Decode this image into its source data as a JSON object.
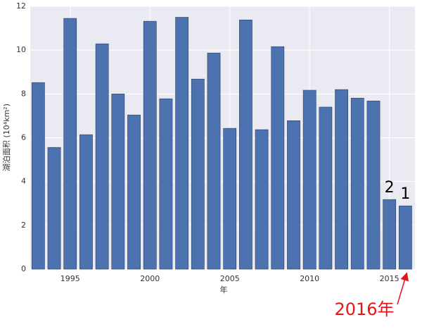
{
  "chart_data": {
    "type": "bar",
    "x": [
      1993,
      1994,
      1995,
      1996,
      1997,
      1998,
      1999,
      2000,
      2001,
      2002,
      2003,
      2004,
      2005,
      2006,
      2007,
      2008,
      2009,
      2010,
      2011,
      2012,
      2013,
      2014,
      2015,
      2016
    ],
    "values": [
      8.52,
      5.56,
      11.45,
      6.14,
      10.29,
      8.0,
      7.04,
      11.32,
      7.78,
      11.5,
      8.68,
      9.87,
      6.43,
      11.38,
      6.37,
      10.16,
      6.78,
      8.17,
      7.4,
      8.2,
      7.81,
      7.68,
      3.18,
      2.89
    ],
    "color": "#4c72b0",
    "xlabel": "年",
    "ylabel": "湖泊面积 (10⁴km²)",
    "xlim": [
      1992.5,
      2016.6
    ],
    "xticks": [
      1995,
      2000,
      2005,
      2010,
      2015
    ],
    "ylim": [
      0,
      12
    ],
    "yticks": [
      0,
      2,
      4,
      6,
      8,
      10,
      12
    ],
    "grid": true,
    "annotations": [
      "2",
      "1",
      "2016年"
    ]
  }
}
